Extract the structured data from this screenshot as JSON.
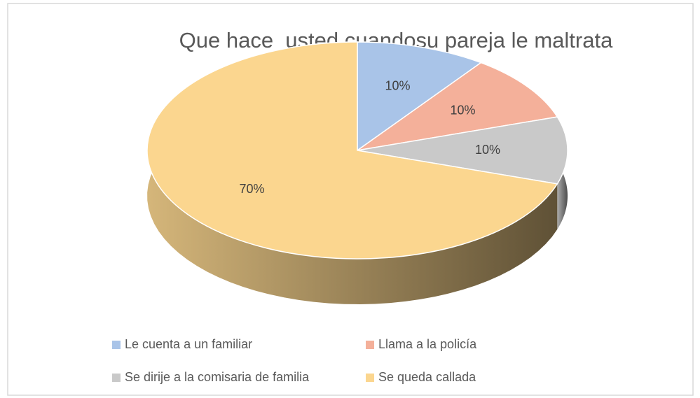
{
  "chart_data": {
    "type": "pie",
    "title": "Que hace  usted cuandosu pareja le maltrata",
    "categories": [
      "Le cuenta a un familiar",
      "Llama a la policía",
      "Se dirije a la comisaria de familia",
      "Se queda callada"
    ],
    "values": [
      10,
      10,
      10,
      70
    ],
    "value_labels": [
      "10%",
      "10%",
      "10%",
      "70%"
    ],
    "colors": [
      "#a9c4e8",
      "#f4b09a",
      "#c9c9c9",
      "#fbd68f"
    ],
    "legend": "bottom"
  }
}
